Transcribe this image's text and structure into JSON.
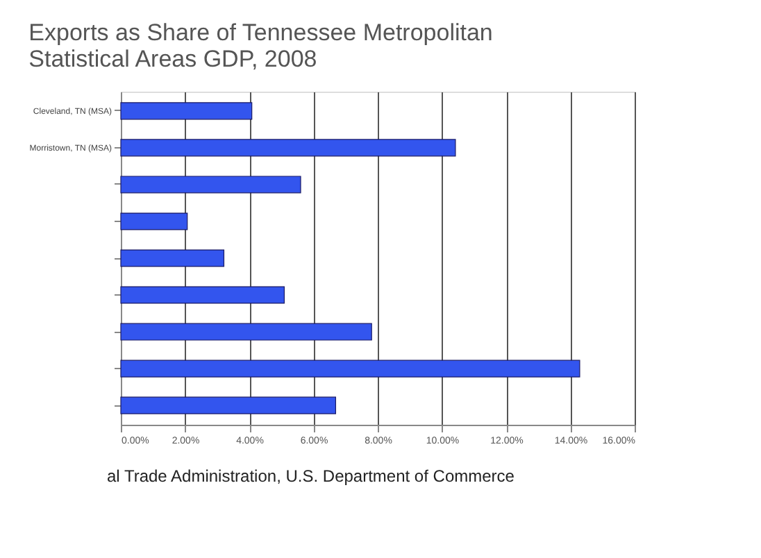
{
  "chart_data": {
    "type": "bar",
    "orientation": "horizontal",
    "title": "Exports as Share of Tennessee Metropolitan Statistical Areas GDP, 2008",
    "categories": [
      "Cleveland, TN (MSA)",
      "Morristown, TN (MSA)",
      null,
      null,
      null,
      null,
      null,
      null,
      null
    ],
    "values": [
      4.08,
      10.42,
      5.6,
      2.07,
      3.21,
      5.09,
      7.81,
      14.29,
      6.69
    ],
    "color": "#3355ee",
    "xlim": [
      0,
      16
    ],
    "xticks": [
      {
        "value": 0,
        "label": "0.00%"
      },
      {
        "value": 2,
        "label": "2.00%"
      },
      {
        "value": 4,
        "label": "4.00%"
      },
      {
        "value": 6,
        "label": "6.00%"
      },
      {
        "value": 8,
        "label": "8.00%"
      },
      {
        "value": 10,
        "label": "10.00%"
      },
      {
        "value": 12,
        "label": "12.00%"
      },
      {
        "value": 14,
        "label": "14.00%"
      },
      {
        "value": 16,
        "label": "16.00%"
      }
    ],
    "grid": "x",
    "annotations": [
      "al Trade Administration, U.S. Department of Commerce"
    ]
  }
}
